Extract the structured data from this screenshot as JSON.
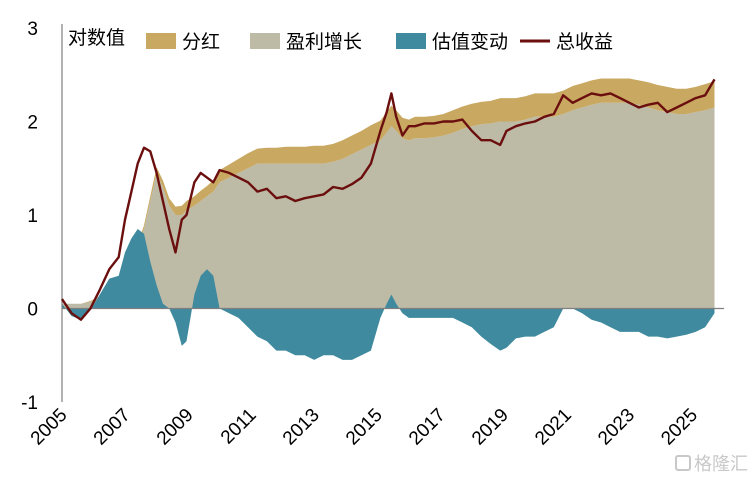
{
  "chart_data": {
    "type": "area",
    "ylabel": "对数值",
    "ylim": [
      -1,
      3
    ],
    "yticks": [
      "3",
      "2",
      "1",
      "0",
      "-1"
    ],
    "xlim": [
      2005,
      2026
    ],
    "xticks": [
      "2005",
      "2007",
      "2009",
      "2011",
      "2013",
      "2015",
      "2017",
      "2019",
      "2021",
      "2023",
      "2025"
    ],
    "legend": [
      {
        "name": "分红",
        "color": "#c9a862",
        "kind": "area"
      },
      {
        "name": "盈利增长",
        "color": "#bdbaa6",
        "kind": "area"
      },
      {
        "name": "估值变动",
        "color": "#3f8a9e",
        "kind": "area"
      },
      {
        "name": "总收益",
        "color": "#6b0e0e",
        "kind": "line"
      }
    ],
    "x": [
      2005.0,
      2005.3,
      2005.6,
      2005.9,
      2006.2,
      2006.5,
      2006.8,
      2007.0,
      2007.2,
      2007.4,
      2007.6,
      2007.8,
      2008.0,
      2008.2,
      2008.4,
      2008.6,
      2008.8,
      2008.95,
      2009.2,
      2009.4,
      2009.6,
      2009.8,
      2010.0,
      2010.3,
      2010.6,
      2010.9,
      2011.2,
      2011.5,
      2011.8,
      2012.1,
      2012.4,
      2012.7,
      2013.0,
      2013.3,
      2013.6,
      2013.9,
      2014.2,
      2014.5,
      2014.8,
      2015.1,
      2015.3,
      2015.45,
      2015.6,
      2015.8,
      2016.0,
      2016.2,
      2016.5,
      2016.8,
      2017.1,
      2017.4,
      2017.7,
      2018.0,
      2018.3,
      2018.6,
      2018.9,
      2019.1,
      2019.4,
      2019.7,
      2020.0,
      2020.3,
      2020.6,
      2020.9,
      2021.2,
      2021.5,
      2021.8,
      2022.1,
      2022.4,
      2022.7,
      2023.0,
      2023.3,
      2023.6,
      2023.9,
      2024.2,
      2024.5,
      2024.8,
      2025.1,
      2025.4,
      2025.7
    ],
    "series": [
      {
        "name": "估值变动",
        "values": [
          0.05,
          -0.08,
          -0.12,
          -0.02,
          0.15,
          0.32,
          0.35,
          0.6,
          0.75,
          0.85,
          0.8,
          0.5,
          0.25,
          0.05,
          0.0,
          -0.15,
          -0.4,
          -0.35,
          0.15,
          0.35,
          0.42,
          0.35,
          0.0,
          -0.05,
          -0.1,
          -0.2,
          -0.3,
          -0.35,
          -0.45,
          -0.45,
          -0.5,
          -0.5,
          -0.55,
          -0.5,
          -0.5,
          -0.55,
          -0.55,
          -0.5,
          -0.45,
          -0.1,
          0.05,
          0.15,
          0.05,
          -0.05,
          -0.1,
          -0.1,
          -0.1,
          -0.1,
          -0.1,
          -0.1,
          -0.15,
          -0.2,
          -0.3,
          -0.38,
          -0.45,
          -0.42,
          -0.32,
          -0.3,
          -0.3,
          -0.25,
          -0.2,
          0.0,
          0.0,
          -0.05,
          -0.12,
          -0.15,
          -0.2,
          -0.25,
          -0.25,
          -0.25,
          -0.3,
          -0.3,
          -0.32,
          -0.3,
          -0.28,
          -0.25,
          -0.2,
          -0.05
        ]
      },
      {
        "name": "盈利增长",
        "values": [
          0.05,
          0.05,
          0.05,
          0.07,
          0.12,
          0.2,
          0.3,
          0.45,
          0.55,
          0.65,
          0.85,
          1.15,
          1.45,
          1.3,
          1.1,
          1.0,
          1.0,
          1.05,
          1.1,
          1.15,
          1.2,
          1.25,
          1.35,
          1.4,
          1.45,
          1.5,
          1.55,
          1.55,
          1.55,
          1.55,
          1.55,
          1.55,
          1.55,
          1.55,
          1.57,
          1.6,
          1.65,
          1.7,
          1.75,
          1.8,
          1.88,
          1.95,
          1.9,
          1.82,
          1.8,
          1.82,
          1.82,
          1.83,
          1.85,
          1.88,
          1.92,
          1.95,
          1.97,
          1.98,
          2.0,
          2.0,
          2.0,
          2.02,
          2.05,
          2.05,
          2.05,
          2.08,
          2.12,
          2.15,
          2.18,
          2.2,
          2.2,
          2.2,
          2.2,
          2.18,
          2.15,
          2.12,
          2.1,
          2.08,
          2.08,
          2.1,
          2.12,
          2.15
        ]
      },
      {
        "name": "分红",
        "values": [
          0.0,
          0.0,
          0.0,
          0.01,
          0.01,
          0.01,
          0.02,
          0.02,
          0.03,
          0.03,
          0.04,
          0.05,
          0.06,
          0.07,
          0.08,
          0.09,
          0.1,
          0.1,
          0.1,
          0.11,
          0.11,
          0.12,
          0.13,
          0.14,
          0.15,
          0.16,
          0.16,
          0.17,
          0.17,
          0.18,
          0.18,
          0.18,
          0.19,
          0.19,
          0.19,
          0.2,
          0.2,
          0.2,
          0.21,
          0.21,
          0.22,
          0.22,
          0.22,
          0.22,
          0.22,
          0.23,
          0.23,
          0.23,
          0.23,
          0.24,
          0.24,
          0.24,
          0.24,
          0.24,
          0.25,
          0.25,
          0.25,
          0.25,
          0.25,
          0.25,
          0.25,
          0.25,
          0.26,
          0.26,
          0.26,
          0.26,
          0.26,
          0.26,
          0.26,
          0.26,
          0.27,
          0.27,
          0.27,
          0.27,
          0.27,
          0.27,
          0.28,
          0.28
        ]
      },
      {
        "name": "总收益",
        "values": [
          0.1,
          -0.05,
          -0.12,
          0.0,
          0.2,
          0.42,
          0.55,
          0.95,
          1.25,
          1.55,
          1.72,
          1.68,
          1.45,
          1.15,
          0.85,
          0.6,
          0.95,
          1.0,
          1.35,
          1.45,
          1.4,
          1.35,
          1.48,
          1.45,
          1.4,
          1.35,
          1.25,
          1.28,
          1.18,
          1.2,
          1.15,
          1.18,
          1.2,
          1.22,
          1.3,
          1.28,
          1.33,
          1.4,
          1.55,
          1.9,
          2.1,
          2.3,
          2.05,
          1.85,
          1.95,
          1.95,
          1.98,
          1.98,
          2.0,
          2.0,
          2.02,
          1.9,
          1.8,
          1.8,
          1.75,
          1.9,
          1.95,
          1.98,
          2.0,
          2.05,
          2.08,
          2.28,
          2.2,
          2.25,
          2.3,
          2.28,
          2.3,
          2.25,
          2.2,
          2.15,
          2.18,
          2.2,
          2.1,
          2.15,
          2.2,
          2.25,
          2.28,
          2.45
        ]
      }
    ]
  },
  "watermark": {
    "text": "格隆汇"
  }
}
